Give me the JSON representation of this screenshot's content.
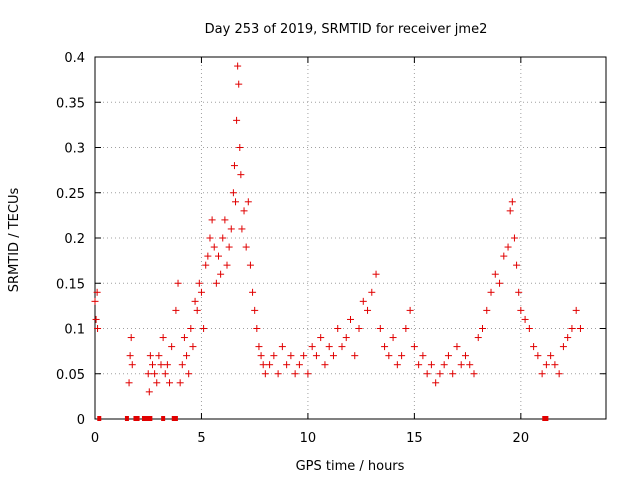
{
  "chart_data": {
    "type": "scatter",
    "title": "Day 253 of 2019, SRMTID for receiver jme2",
    "xlabel": "GPS time / hours",
    "ylabel": "SRMTID / TECUs",
    "xlim": [
      0,
      24
    ],
    "ylim": [
      0,
      0.4
    ],
    "xticks": [
      0,
      5,
      10,
      15,
      20
    ],
    "xtick_labels": [
      "0",
      "5",
      "10",
      "15",
      "20"
    ],
    "yticks": [
      0,
      0.05,
      0.1,
      0.15,
      0.2,
      0.25,
      0.3,
      0.35,
      0.4
    ],
    "ytick_labels": [
      "0",
      "0.05",
      "0.1",
      "0.15",
      "0.2",
      "0.25",
      "0.3",
      "0.35",
      "0.4"
    ],
    "grid": true,
    "marker": "plus",
    "color": "#e00000",
    "series": [
      {
        "name": "SRMTID",
        "x": [
          0.0,
          0.05,
          0.1,
          0.12,
          1.6,
          1.65,
          1.7,
          1.75,
          2.5,
          2.55,
          2.6,
          2.7,
          2.8,
          2.9,
          3.0,
          3.1,
          3.2,
          3.3,
          3.4,
          3.5,
          3.6,
          3.8,
          3.9,
          4.0,
          4.1,
          4.2,
          4.3,
          4.4,
          4.5,
          4.6,
          4.7,
          4.8,
          4.9,
          5.0,
          5.1,
          5.2,
          5.3,
          5.4,
          5.5,
          5.6,
          5.7,
          5.8,
          5.9,
          6.0,
          6.1,
          6.2,
          6.3,
          6.4,
          6.5,
          6.55,
          6.6,
          6.65,
          6.7,
          6.75,
          6.8,
          6.85,
          6.9,
          7.0,
          7.1,
          7.2,
          7.3,
          7.4,
          7.5,
          7.6,
          7.7,
          7.8,
          7.9,
          8.0,
          8.2,
          8.4,
          8.6,
          8.8,
          9.0,
          9.2,
          9.4,
          9.6,
          9.8,
          10.0,
          10.2,
          10.4,
          10.6,
          10.8,
          11.0,
          11.2,
          11.4,
          11.6,
          11.8,
          12.0,
          12.2,
          12.4,
          12.6,
          12.8,
          13.0,
          13.2,
          13.4,
          13.6,
          13.8,
          14.0,
          14.2,
          14.4,
          14.6,
          14.8,
          15.0,
          15.2,
          15.4,
          15.6,
          15.8,
          16.0,
          16.2,
          16.4,
          16.6,
          16.8,
          17.0,
          17.2,
          17.4,
          17.6,
          17.8,
          18.0,
          18.2,
          18.4,
          18.6,
          18.8,
          19.0,
          19.2,
          19.4,
          19.5,
          19.6,
          19.7,
          19.8,
          19.9,
          20.0,
          20.2,
          20.4,
          20.6,
          20.8,
          21.0,
          21.2,
          21.4,
          21.6,
          21.8,
          22.0,
          22.2,
          22.4,
          22.6,
          22.8
        ],
        "y": [
          0.13,
          0.11,
          0.14,
          0.1,
          0.04,
          0.07,
          0.09,
          0.06,
          0.05,
          0.03,
          0.07,
          0.06,
          0.05,
          0.04,
          0.07,
          0.06,
          0.09,
          0.05,
          0.06,
          0.04,
          0.08,
          0.12,
          0.15,
          0.04,
          0.06,
          0.09,
          0.07,
          0.05,
          0.1,
          0.08,
          0.13,
          0.12,
          0.15,
          0.14,
          0.1,
          0.17,
          0.18,
          0.2,
          0.22,
          0.19,
          0.15,
          0.18,
          0.16,
          0.2,
          0.22,
          0.17,
          0.19,
          0.21,
          0.25,
          0.28,
          0.24,
          0.33,
          0.39,
          0.37,
          0.3,
          0.27,
          0.21,
          0.23,
          0.19,
          0.24,
          0.17,
          0.14,
          0.12,
          0.1,
          0.08,
          0.07,
          0.06,
          0.05,
          0.06,
          0.07,
          0.05,
          0.08,
          0.06,
          0.07,
          0.05,
          0.06,
          0.07,
          0.05,
          0.08,
          0.07,
          0.09,
          0.06,
          0.08,
          0.07,
          0.1,
          0.08,
          0.09,
          0.11,
          0.07,
          0.1,
          0.13,
          0.12,
          0.14,
          0.16,
          0.1,
          0.08,
          0.07,
          0.09,
          0.06,
          0.07,
          0.1,
          0.12,
          0.08,
          0.06,
          0.07,
          0.05,
          0.06,
          0.04,
          0.05,
          0.06,
          0.07,
          0.05,
          0.08,
          0.06,
          0.07,
          0.06,
          0.05,
          0.09,
          0.1,
          0.12,
          0.14,
          0.16,
          0.15,
          0.18,
          0.19,
          0.23,
          0.24,
          0.2,
          0.17,
          0.14,
          0.12,
          0.11,
          0.1,
          0.08,
          0.07,
          0.05,
          0.06,
          0.07,
          0.06,
          0.05,
          0.08,
          0.09,
          0.1,
          0.12,
          0.1
        ]
      }
    ],
    "zero_points_x": [
      0.2,
      1.5,
      1.9,
      2.0,
      2.3,
      2.4,
      2.5,
      2.6,
      3.2,
      3.7,
      3.8,
      21.1,
      21.2
    ]
  }
}
